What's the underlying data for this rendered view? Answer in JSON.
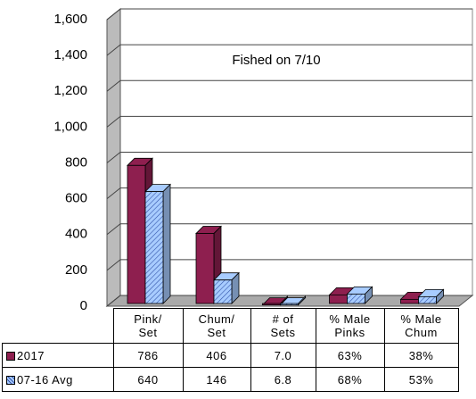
{
  "chart_data": {
    "type": "bar3d",
    "annotation": "Fished on 7/10",
    "categories": [
      "Pink/\nSet",
      "Chum/\nSet",
      "# of\nSets",
      "% Male\nPinks",
      "% Male\nChum"
    ],
    "series": [
      {
        "name": "2017",
        "color": "#8e1f4f",
        "values": [
          786,
          406,
          7.0,
          63,
          38
        ],
        "value_labels": [
          "786",
          "406",
          "7.0",
          "63%",
          "38%"
        ]
      },
      {
        "name": "07-16 Avg",
        "color": "#a8ccff",
        "values": [
          640,
          146,
          6.8,
          68,
          53
        ],
        "value_labels": [
          "640",
          "146",
          "6.8",
          "68%",
          "53%"
        ]
      }
    ],
    "ylim": [
      0,
      1600
    ],
    "yticks": [
      0,
      200,
      400,
      600,
      800,
      {
        "value": 1000,
        "label": "1,000"
      },
      {
        "value": 1200,
        "label": "1,200"
      },
      {
        "value": 1400,
        "label": "1,400"
      },
      {
        "value": 1600,
        "label": "1,600"
      }
    ],
    "grid": true
  }
}
